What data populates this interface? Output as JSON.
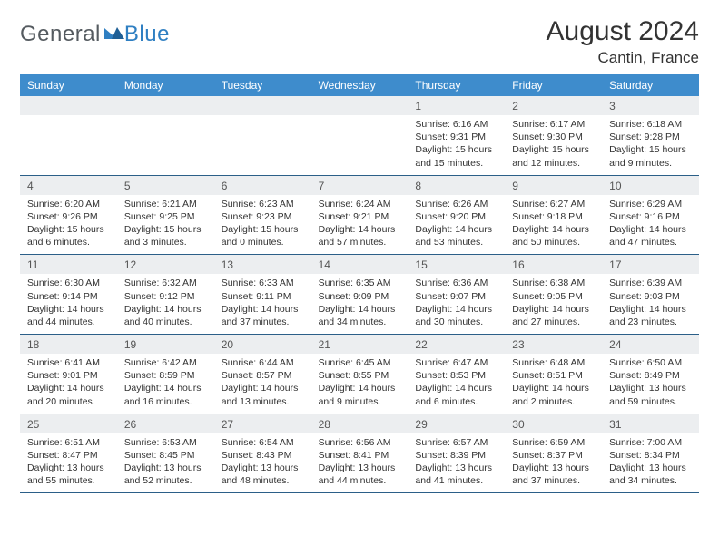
{
  "brand": {
    "part1": "General",
    "part2": "Blue"
  },
  "title": "August 2024",
  "location": "Cantin, France",
  "header_bg": "#3e8ccc",
  "row_divider": "#2b5f88",
  "daynum_bg": "#eceef0",
  "weekdays": [
    "Sunday",
    "Monday",
    "Tuesday",
    "Wednesday",
    "Thursday",
    "Friday",
    "Saturday"
  ],
  "weeks": [
    {
      "nums": [
        "",
        "",
        "",
        "",
        "1",
        "2",
        "3"
      ],
      "cells": [
        {},
        {},
        {},
        {},
        {
          "sunrise": "Sunrise: 6:16 AM",
          "sunset": "Sunset: 9:31 PM",
          "daylight": "Daylight: 15 hours and 15 minutes."
        },
        {
          "sunrise": "Sunrise: 6:17 AM",
          "sunset": "Sunset: 9:30 PM",
          "daylight": "Daylight: 15 hours and 12 minutes."
        },
        {
          "sunrise": "Sunrise: 6:18 AM",
          "sunset": "Sunset: 9:28 PM",
          "daylight": "Daylight: 15 hours and 9 minutes."
        }
      ]
    },
    {
      "nums": [
        "4",
        "5",
        "6",
        "7",
        "8",
        "9",
        "10"
      ],
      "cells": [
        {
          "sunrise": "Sunrise: 6:20 AM",
          "sunset": "Sunset: 9:26 PM",
          "daylight": "Daylight: 15 hours and 6 minutes."
        },
        {
          "sunrise": "Sunrise: 6:21 AM",
          "sunset": "Sunset: 9:25 PM",
          "daylight": "Daylight: 15 hours and 3 minutes."
        },
        {
          "sunrise": "Sunrise: 6:23 AM",
          "sunset": "Sunset: 9:23 PM",
          "daylight": "Daylight: 15 hours and 0 minutes."
        },
        {
          "sunrise": "Sunrise: 6:24 AM",
          "sunset": "Sunset: 9:21 PM",
          "daylight": "Daylight: 14 hours and 57 minutes."
        },
        {
          "sunrise": "Sunrise: 6:26 AM",
          "sunset": "Sunset: 9:20 PM",
          "daylight": "Daylight: 14 hours and 53 minutes."
        },
        {
          "sunrise": "Sunrise: 6:27 AM",
          "sunset": "Sunset: 9:18 PM",
          "daylight": "Daylight: 14 hours and 50 minutes."
        },
        {
          "sunrise": "Sunrise: 6:29 AM",
          "sunset": "Sunset: 9:16 PM",
          "daylight": "Daylight: 14 hours and 47 minutes."
        }
      ]
    },
    {
      "nums": [
        "11",
        "12",
        "13",
        "14",
        "15",
        "16",
        "17"
      ],
      "cells": [
        {
          "sunrise": "Sunrise: 6:30 AM",
          "sunset": "Sunset: 9:14 PM",
          "daylight": "Daylight: 14 hours and 44 minutes."
        },
        {
          "sunrise": "Sunrise: 6:32 AM",
          "sunset": "Sunset: 9:12 PM",
          "daylight": "Daylight: 14 hours and 40 minutes."
        },
        {
          "sunrise": "Sunrise: 6:33 AM",
          "sunset": "Sunset: 9:11 PM",
          "daylight": "Daylight: 14 hours and 37 minutes."
        },
        {
          "sunrise": "Sunrise: 6:35 AM",
          "sunset": "Sunset: 9:09 PM",
          "daylight": "Daylight: 14 hours and 34 minutes."
        },
        {
          "sunrise": "Sunrise: 6:36 AM",
          "sunset": "Sunset: 9:07 PM",
          "daylight": "Daylight: 14 hours and 30 minutes."
        },
        {
          "sunrise": "Sunrise: 6:38 AM",
          "sunset": "Sunset: 9:05 PM",
          "daylight": "Daylight: 14 hours and 27 minutes."
        },
        {
          "sunrise": "Sunrise: 6:39 AM",
          "sunset": "Sunset: 9:03 PM",
          "daylight": "Daylight: 14 hours and 23 minutes."
        }
      ]
    },
    {
      "nums": [
        "18",
        "19",
        "20",
        "21",
        "22",
        "23",
        "24"
      ],
      "cells": [
        {
          "sunrise": "Sunrise: 6:41 AM",
          "sunset": "Sunset: 9:01 PM",
          "daylight": "Daylight: 14 hours and 20 minutes."
        },
        {
          "sunrise": "Sunrise: 6:42 AM",
          "sunset": "Sunset: 8:59 PM",
          "daylight": "Daylight: 14 hours and 16 minutes."
        },
        {
          "sunrise": "Sunrise: 6:44 AM",
          "sunset": "Sunset: 8:57 PM",
          "daylight": "Daylight: 14 hours and 13 minutes."
        },
        {
          "sunrise": "Sunrise: 6:45 AM",
          "sunset": "Sunset: 8:55 PM",
          "daylight": "Daylight: 14 hours and 9 minutes."
        },
        {
          "sunrise": "Sunrise: 6:47 AM",
          "sunset": "Sunset: 8:53 PM",
          "daylight": "Daylight: 14 hours and 6 minutes."
        },
        {
          "sunrise": "Sunrise: 6:48 AM",
          "sunset": "Sunset: 8:51 PM",
          "daylight": "Daylight: 14 hours and 2 minutes."
        },
        {
          "sunrise": "Sunrise: 6:50 AM",
          "sunset": "Sunset: 8:49 PM",
          "daylight": "Daylight: 13 hours and 59 minutes."
        }
      ]
    },
    {
      "nums": [
        "25",
        "26",
        "27",
        "28",
        "29",
        "30",
        "31"
      ],
      "cells": [
        {
          "sunrise": "Sunrise: 6:51 AM",
          "sunset": "Sunset: 8:47 PM",
          "daylight": "Daylight: 13 hours and 55 minutes."
        },
        {
          "sunrise": "Sunrise: 6:53 AM",
          "sunset": "Sunset: 8:45 PM",
          "daylight": "Daylight: 13 hours and 52 minutes."
        },
        {
          "sunrise": "Sunrise: 6:54 AM",
          "sunset": "Sunset: 8:43 PM",
          "daylight": "Daylight: 13 hours and 48 minutes."
        },
        {
          "sunrise": "Sunrise: 6:56 AM",
          "sunset": "Sunset: 8:41 PM",
          "daylight": "Daylight: 13 hours and 44 minutes."
        },
        {
          "sunrise": "Sunrise: 6:57 AM",
          "sunset": "Sunset: 8:39 PM",
          "daylight": "Daylight: 13 hours and 41 minutes."
        },
        {
          "sunrise": "Sunrise: 6:59 AM",
          "sunset": "Sunset: 8:37 PM",
          "daylight": "Daylight: 13 hours and 37 minutes."
        },
        {
          "sunrise": "Sunrise: 7:00 AM",
          "sunset": "Sunset: 8:34 PM",
          "daylight": "Daylight: 13 hours and 34 minutes."
        }
      ]
    }
  ]
}
